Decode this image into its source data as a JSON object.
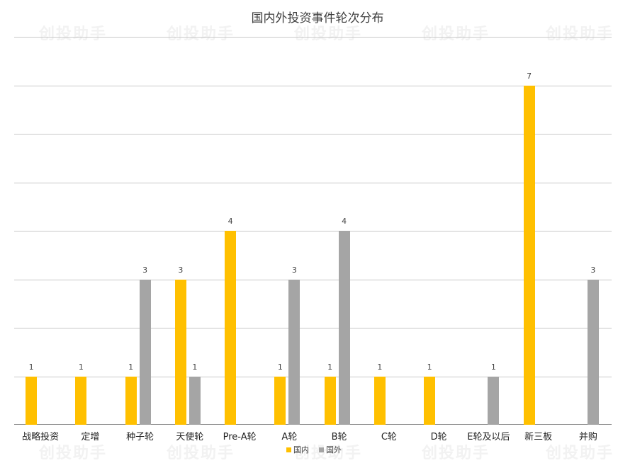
{
  "chart_data": {
    "type": "bar",
    "title": "国内外投资事件轮次分布",
    "xlabel": "",
    "ylabel": "",
    "ylim": [
      0,
      8
    ],
    "grid": true,
    "legend_position": "bottom",
    "categories": [
      "战略投资",
      "定增",
      "种子轮",
      "天使轮",
      "Pre-A轮",
      "A轮",
      "B轮",
      "C轮",
      "D轮",
      "E轮及以后",
      "新三板",
      "并购"
    ],
    "series": [
      {
        "name": "国内",
        "color": "#FFC000",
        "values": [
          1,
          1,
          1,
          3,
          4,
          1,
          1,
          1,
          1,
          0,
          7,
          0
        ]
      },
      {
        "name": "国外",
        "color": "#A5A5A5",
        "values": [
          0,
          0,
          3,
          1,
          0,
          3,
          4,
          0,
          0,
          1,
          0,
          3
        ]
      }
    ]
  },
  "watermark": "创投助手"
}
